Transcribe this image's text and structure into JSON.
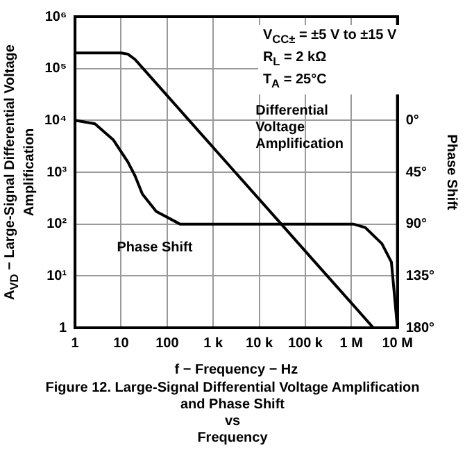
{
  "chart_data": {
    "type": "line",
    "title": "Figure 12. Large-Signal Differential Voltage Amplification and Phase Shift vs Frequency",
    "xlabel": "f − Frequency − Hz",
    "ylabel": "A$_{VD}$ − Large-Signal Differential Voltage Amplification",
    "y2label": "Phase Shift",
    "annotations": [
      "V$_{CC±}$ = ±5 V to ±15 V",
      "R$_{L}$ = 2 kΩ",
      "T$_{A}$ = 25°C"
    ],
    "log": "xy",
    "grid": true,
    "legend": false,
    "marker": "none",
    "line_style": "solid",
    "xlim": [
      1,
      10000000
    ],
    "xticks": [
      1,
      10,
      100,
      {
        "value": 1000,
        "label": "1 k"
      },
      {
        "value": 10000,
        "label": "10 k"
      },
      {
        "value": 100000,
        "label": "100 k"
      },
      {
        "value": 1000000,
        "label": "1 M"
      },
      {
        "value": 10000000,
        "label": "10 M"
      }
    ],
    "ylim": [
      1,
      1000000
    ],
    "yticks": [
      1,
      {
        "value": 10,
        "label": "10¹"
      },
      {
        "value": 100,
        "label": "10²"
      },
      {
        "value": 1000,
        "label": "10³"
      },
      {
        "value": 10000,
        "label": "10⁴"
      },
      {
        "value": 100000,
        "label": "10⁵"
      },
      {
        "value": 1000000,
        "label": "10⁶"
      }
    ],
    "y2lim": [
      180,
      -90
    ],
    "y2ticks": [
      {
        "value": 0,
        "label": "0°"
      },
      {
        "value": 45,
        "label": "45°"
      },
      {
        "value": 90,
        "label": "90°"
      },
      {
        "value": 135,
        "label": "135°"
      },
      {
        "value": 180,
        "label": "180°"
      }
    ],
    "series": [
      {
        "name": "Differential Voltage Amplification",
        "color": "#000000",
        "x": [
          1,
          10,
          14,
          20,
          30,
          300,
          3000,
          30000,
          300000,
          3000000
        ],
        "values": [
          200000,
          200000,
          190000,
          150000,
          100000,
          10000,
          1000,
          100,
          10,
          1
        ]
      },
      {
        "name": "Phase Shift",
        "color": "#000000",
        "axis": "y2",
        "x": [
          1,
          2.7,
          6.8,
          14,
          20,
          29,
          58,
          190,
          1100000,
          2000000,
          4600000,
          7400000,
          10000000
        ],
        "values": [
          0,
          3,
          17,
          36,
          48,
          64,
          79,
          90,
          90,
          93,
          107,
          123,
          180
        ]
      }
    ]
  }
}
